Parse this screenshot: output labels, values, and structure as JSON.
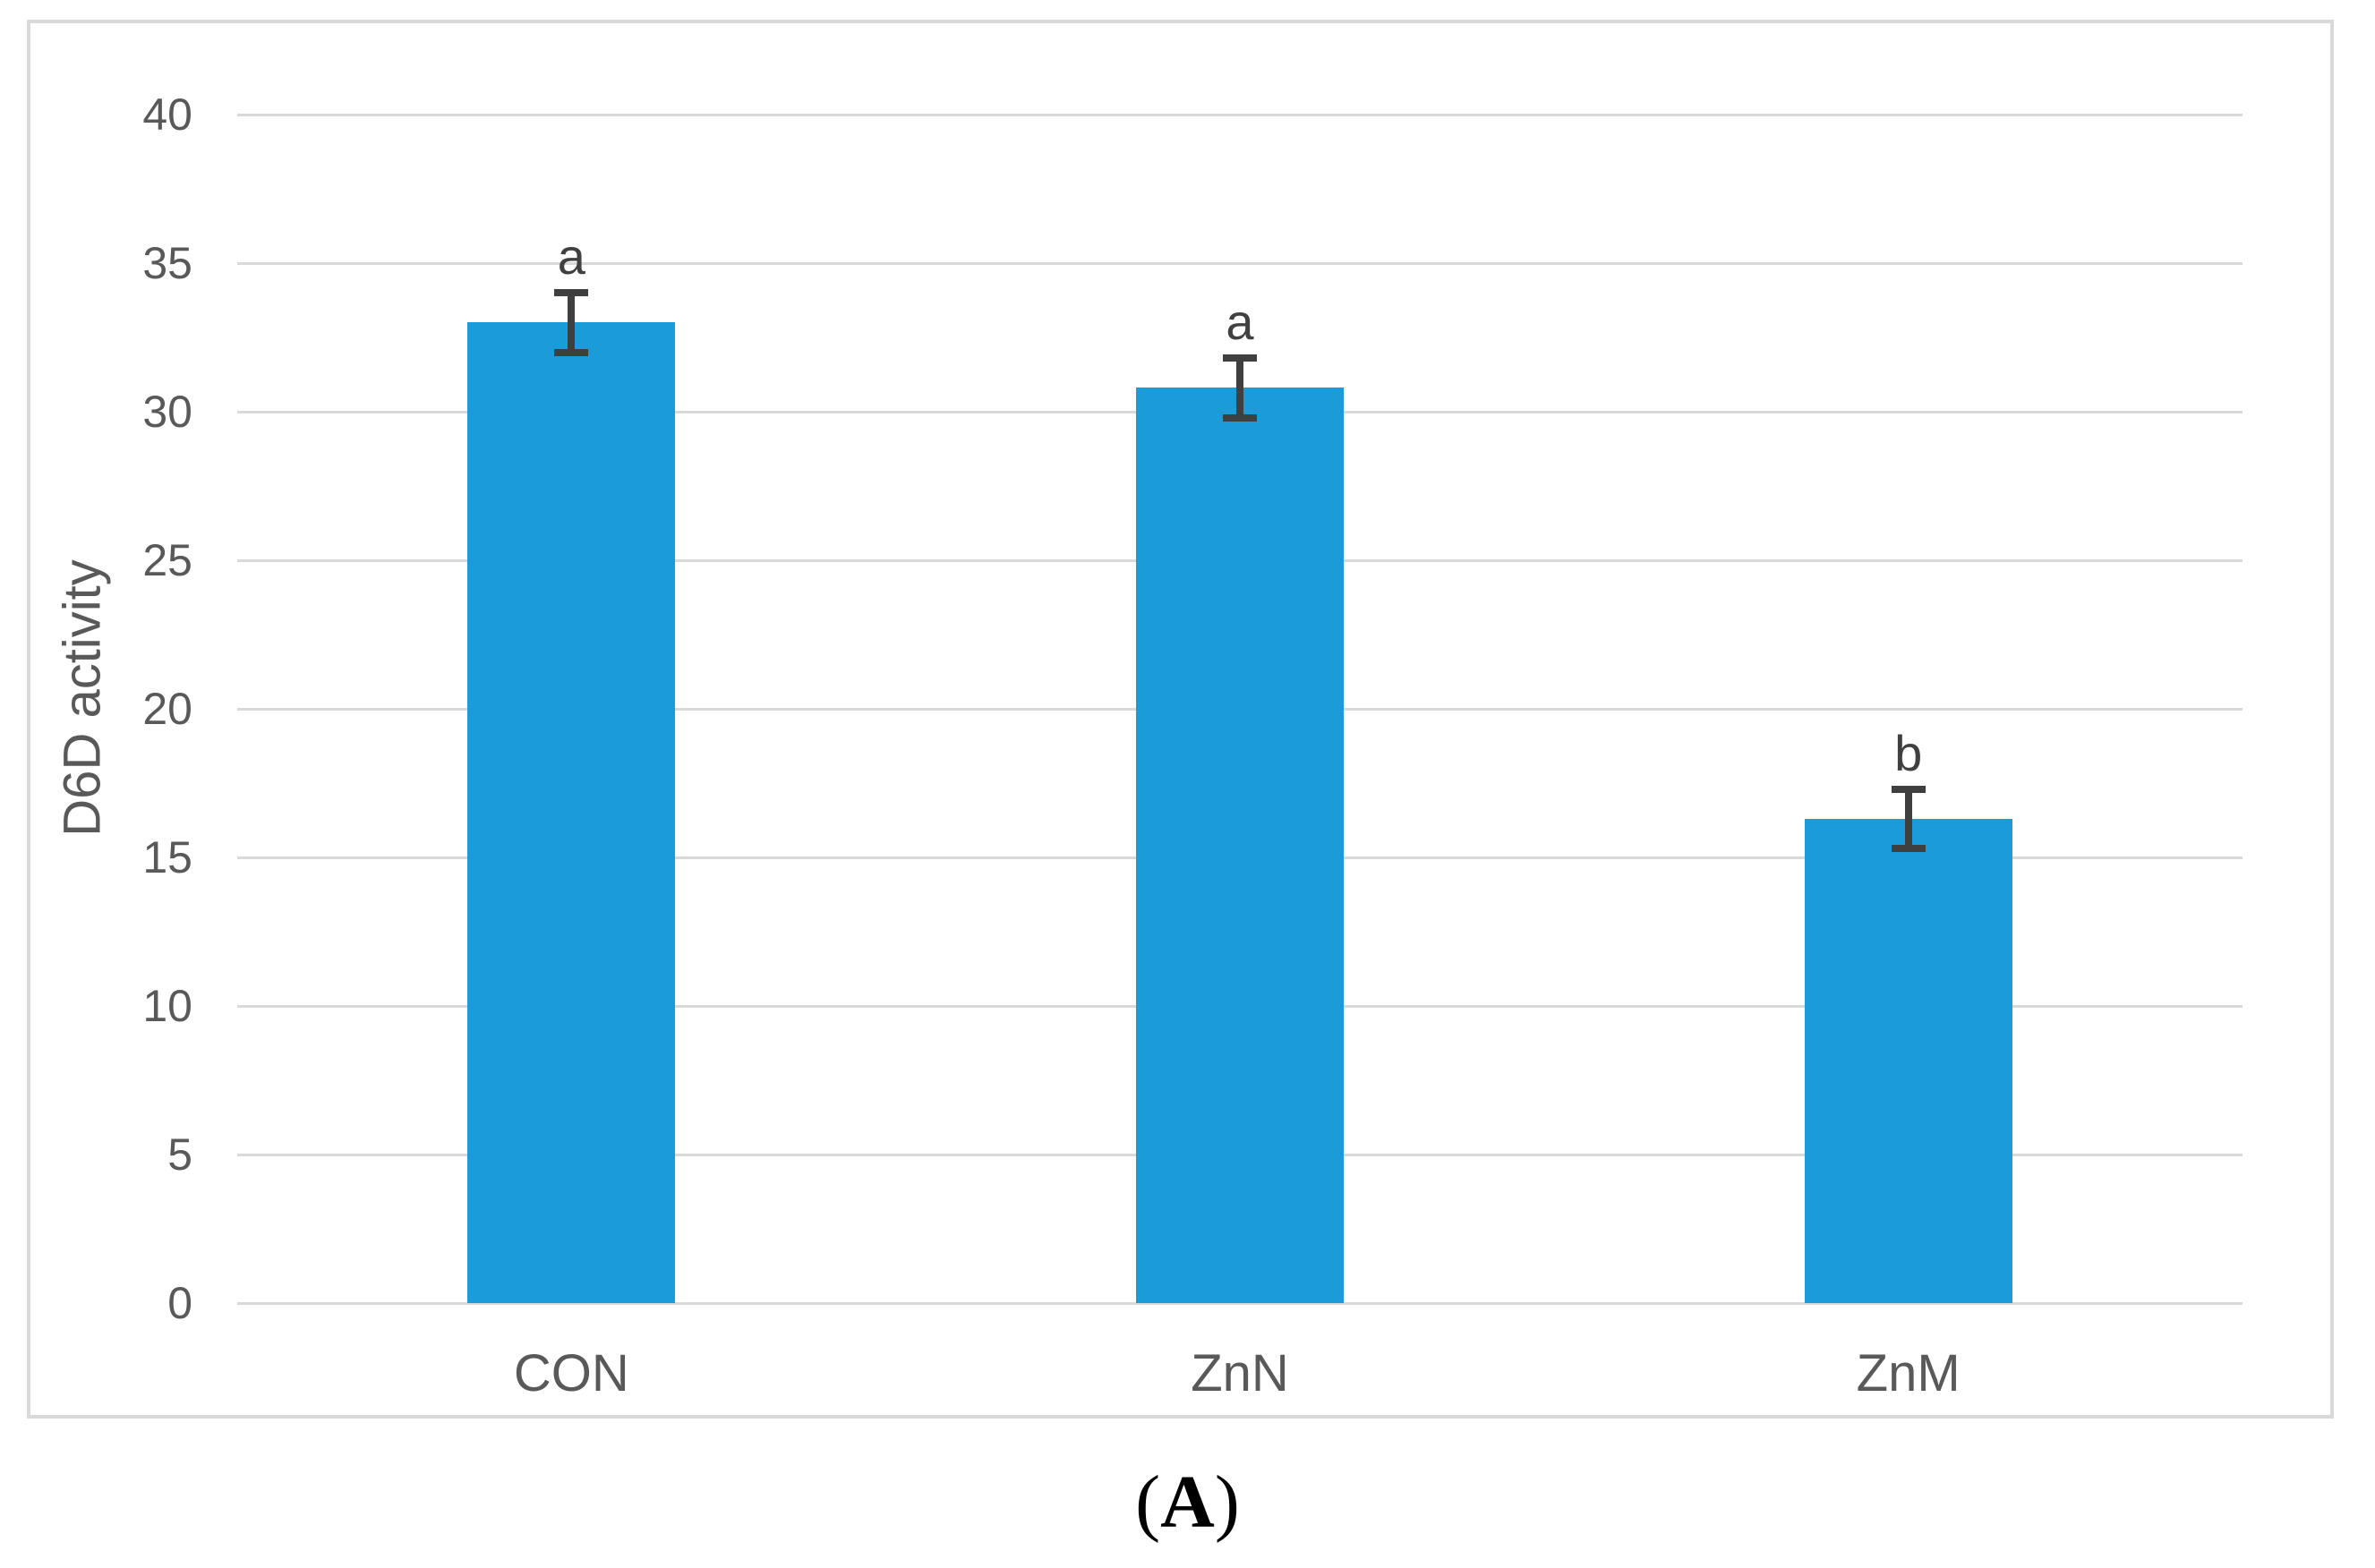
{
  "figure": {
    "caption": "(A)",
    "caption_open": "(",
    "caption_letter": "A",
    "caption_close": ")"
  },
  "chart_data": {
    "type": "bar",
    "ylabel": "D6D activity",
    "categories": [
      "CON",
      "ZnN",
      "ZnM"
    ],
    "values": [
      33.0,
      30.8,
      16.3
    ],
    "errors": [
      1.0,
      1.0,
      1.0
    ],
    "sig_letters": [
      "a",
      "a",
      "b"
    ],
    "ylim": [
      0,
      40
    ],
    "yticks": [
      0,
      5,
      10,
      15,
      20,
      25,
      30,
      35,
      40
    ],
    "grid": "horizontal",
    "legend": "none",
    "colors": {
      "bar": "#1B9CD8",
      "gridline": "#D9D9D9",
      "frame_border": "#D9D9D9",
      "axis_text": "#595959",
      "error_bar": "#3F3F3F",
      "sig_letter": "#404040",
      "caption_text": "#000000",
      "background": "#FFFFFF"
    }
  }
}
